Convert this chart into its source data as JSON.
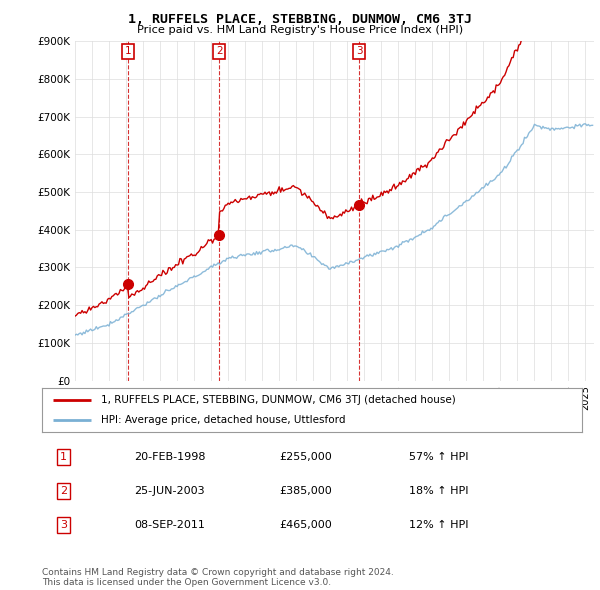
{
  "title": "1, RUFFELS PLACE, STEBBING, DUNMOW, CM6 3TJ",
  "subtitle": "Price paid vs. HM Land Registry's House Price Index (HPI)",
  "ylim": [
    0,
    900000
  ],
  "yticks": [
    0,
    100000,
    200000,
    300000,
    400000,
    500000,
    600000,
    700000,
    800000,
    900000
  ],
  "ytick_labels": [
    "£0",
    "£100K",
    "£200K",
    "£300K",
    "£400K",
    "£500K",
    "£600K",
    "£700K",
    "£800K",
    "£900K"
  ],
  "xlim_start": 1995.0,
  "xlim_end": 2025.5,
  "red_color": "#cc0000",
  "blue_color": "#7ab0d4",
  "legend_label_red": "1, RUFFELS PLACE, STEBBING, DUNMOW, CM6 3TJ (detached house)",
  "legend_label_blue": "HPI: Average price, detached house, Uttlesford",
  "sales": [
    {
      "label": "1",
      "date": "20-FEB-1998",
      "price": 255000,
      "year": 1998.13,
      "hpi_pct": "57% ↑ HPI"
    },
    {
      "label": "2",
      "date": "25-JUN-2003",
      "price": 385000,
      "year": 2003.48,
      "hpi_pct": "18% ↑ HPI"
    },
    {
      "label": "3",
      "date": "08-SEP-2011",
      "price": 465000,
      "year": 2011.69,
      "hpi_pct": "12% ↑ HPI"
    }
  ],
  "footer": "Contains HM Land Registry data © Crown copyright and database right 2024.\nThis data is licensed under the Open Government Licence v3.0.",
  "background_color": "#ffffff",
  "grid_color": "#dddddd"
}
